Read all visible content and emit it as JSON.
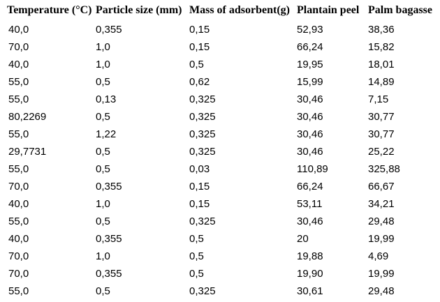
{
  "colors": {
    "background": "#ffffff",
    "text": "#000000"
  },
  "table": {
    "columns": [
      "Temperature (°C)",
      "Particle size (mm)",
      "Mass of adsorbent(g)",
      "Plantain peel",
      "Palm bagasse"
    ],
    "rows": [
      [
        "40,0",
        "0,355",
        "0,15",
        "52,93",
        "38,36"
      ],
      [
        "70,0",
        "1,0",
        "0,15",
        "66,24",
        "15,82"
      ],
      [
        "40,0",
        "1,0",
        "0,5",
        "19,95",
        "18,01"
      ],
      [
        "55,0",
        "0,5",
        "0,62",
        "15,99",
        "14,89"
      ],
      [
        "55,0",
        "0,13",
        "0,325",
        "30,46",
        "7,15"
      ],
      [
        "80,2269",
        "0,5",
        "0,325",
        "30,46",
        "30,77"
      ],
      [
        "55,0",
        "1,22",
        "0,325",
        "30,46",
        "30,77"
      ],
      [
        "29,7731",
        "0,5",
        "0,325",
        "30,46",
        "25,22"
      ],
      [
        "55,0",
        "0,5",
        "0,03",
        "110,89",
        "325,88"
      ],
      [
        "70,0",
        "0,355",
        "0,15",
        "66,24",
        "66,67"
      ],
      [
        "40,0",
        "1,0",
        "0,15",
        "53,11",
        "34,21"
      ],
      [
        "55,0",
        "0,5",
        "0,325",
        "30,46",
        "29,48"
      ],
      [
        "40,0",
        "0,355",
        "0,5",
        "20",
        "19,99"
      ],
      [
        "70,0",
        "1,0",
        "0,5",
        "19,88",
        "4,69"
      ],
      [
        "70,0",
        "0,355",
        "0,5",
        "19,90",
        "19,99"
      ],
      [
        "55,0",
        "0,5",
        "0,325",
        "30,61",
        "29,48"
      ]
    ]
  },
  "chart_data": {
    "type": "table",
    "title": "",
    "columns": [
      "Temperature (°C)",
      "Particle size (mm)",
      "Mass of adsorbent(g)",
      "Plantain peel",
      "Palm bagasse"
    ],
    "decimal_separator": ",",
    "rows": [
      [
        40.0,
        0.355,
        0.15,
        52.93,
        38.36
      ],
      [
        70.0,
        1.0,
        0.15,
        66.24,
        15.82
      ],
      [
        40.0,
        1.0,
        0.5,
        19.95,
        18.01
      ],
      [
        55.0,
        0.5,
        0.62,
        15.99,
        14.89
      ],
      [
        55.0,
        0.13,
        0.325,
        30.46,
        7.15
      ],
      [
        80.2269,
        0.5,
        0.325,
        30.46,
        30.77
      ],
      [
        55.0,
        1.22,
        0.325,
        30.46,
        30.77
      ],
      [
        29.7731,
        0.5,
        0.325,
        30.46,
        25.22
      ],
      [
        55.0,
        0.5,
        0.03,
        110.89,
        325.88
      ],
      [
        70.0,
        0.355,
        0.15,
        66.24,
        66.67
      ],
      [
        40.0,
        1.0,
        0.15,
        53.11,
        34.21
      ],
      [
        55.0,
        0.5,
        0.325,
        30.46,
        29.48
      ],
      [
        40.0,
        0.355,
        0.5,
        20,
        19.99
      ],
      [
        70.0,
        1.0,
        0.5,
        19.88,
        4.69
      ],
      [
        70.0,
        0.355,
        0.5,
        19.9,
        19.99
      ],
      [
        55.0,
        0.5,
        0.325,
        30.61,
        29.48
      ]
    ]
  }
}
